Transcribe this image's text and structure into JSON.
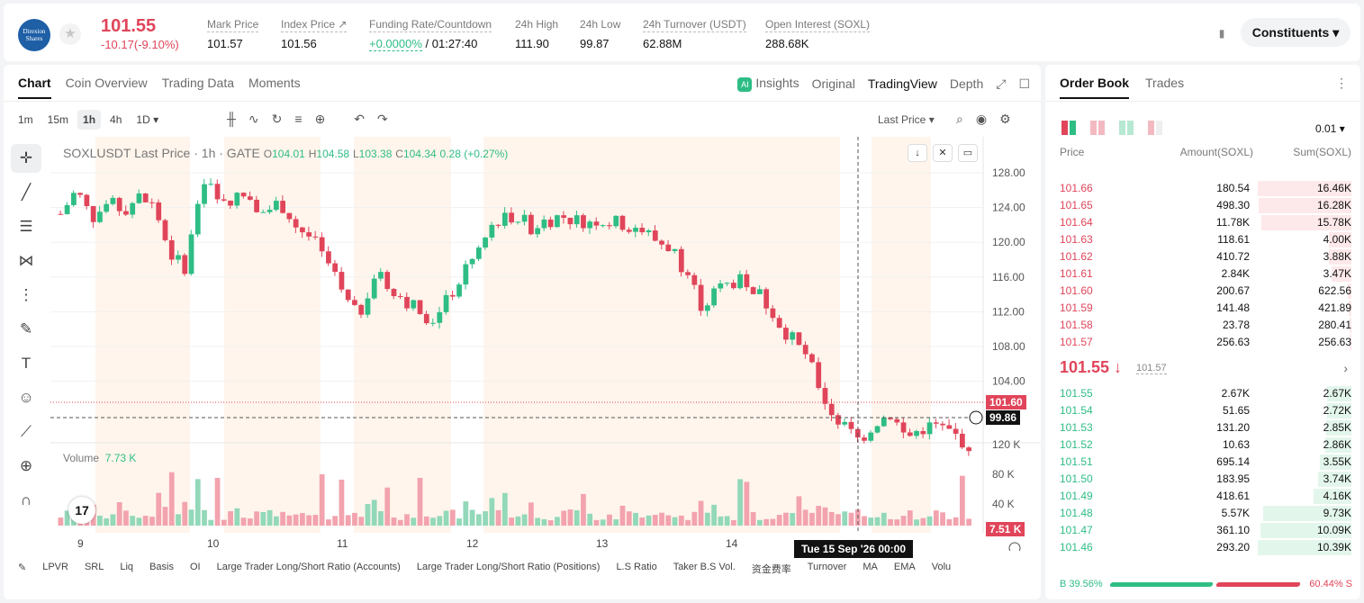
{
  "header": {
    "logo_line1": "Direxion",
    "logo_line2": "Shares",
    "last_price": "101.55",
    "change": "-10.17(-9.10%)",
    "stats": [
      {
        "label": "Mark Price",
        "value": "101.57"
      },
      {
        "label": "Index Price ↗",
        "value": "101.56"
      },
      {
        "label": "Funding Rate/Countdown",
        "value_green": "+0.0000%",
        "value": " / 01:27:40"
      },
      {
        "label": "24h High",
        "value": "111.90"
      },
      {
        "label": "24h Low",
        "value": "99.87"
      },
      {
        "label": "24h Turnover (USDT)",
        "value": "62.88M"
      },
      {
        "label": "Open Interest (SOXL)",
        "value": "288.68K"
      }
    ],
    "constituents_label": "Constituents ▾"
  },
  "chart_panel": {
    "tabs": [
      "Chart",
      "Coin Overview",
      "Trading Data",
      "Moments"
    ],
    "views": {
      "insights": "Insights",
      "original": "Original",
      "tradingview": "TradingView",
      "depth": "Depth"
    },
    "timeframes": [
      "1m",
      "15m",
      "1h",
      "4h",
      "1D ▾"
    ],
    "price_type": "Last Price ▾",
    "legend": {
      "symbol": "SOXLUSDT Last Price · 1h · GATE",
      "o_label": "O",
      "o": "104.01",
      "h_label": "H",
      "h": "104.58",
      "l_label": "L",
      "l": "103.38",
      "c_label": "C",
      "c": "104.34",
      "chg": "0.28 (+0.27%)"
    },
    "volume_label": "Volume",
    "volume_value": "7.73 K",
    "last_price_tag": "101.60",
    "cursor_price_tag": "99.86",
    "volume_tag": "7.51 K",
    "crosshair_time": "Tue 15 Sep '26   00:00",
    "indicators": [
      "LPVR",
      "SRL",
      "Liq",
      "Basis",
      "OI",
      "Large Trader Long/Short Ratio (Accounts)",
      "Large Trader Long/Short Ratio (Positions)",
      "L.S Ratio",
      "Taker B.S Vol.",
      "资金费率",
      "Turnover",
      "MA",
      "EMA",
      "Volu"
    ]
  },
  "chart_data": {
    "type": "candlestick",
    "title": "SOXLUSDT Last Price · 1h · GATE",
    "y_ticks": [
      "128.00",
      "124.00",
      "120.00",
      "116.00",
      "112.00",
      "108.00",
      "104.00"
    ],
    "volume_ticks": [
      "120 K",
      "80 K",
      "40 K"
    ],
    "x_ticks": [
      "9",
      "10",
      "11",
      "12",
      "13",
      "14"
    ],
    "ylim": [
      100,
      130
    ],
    "close_path": [
      124.2,
      126.5,
      123.8,
      125.2,
      124.6,
      125.8,
      124.9,
      120.2,
      119.0,
      127.4,
      126.2,
      125.6,
      126.1,
      124.3,
      125.4,
      123.1,
      121.8,
      119.5,
      116.2,
      114.0,
      118.4,
      117.2,
      115.8,
      114.5,
      113.8,
      116.6,
      118.9,
      121.5,
      123.8,
      124.1,
      122.9,
      123.6,
      124.0,
      123.5,
      123.7,
      123.4,
      123.2,
      122.8,
      121.6,
      120.9,
      118.4,
      115.0,
      116.8,
      117.6,
      117.4,
      115.6,
      113.2,
      111.4,
      109.0,
      105.2,
      103.4,
      102.0,
      103.8,
      104.6,
      102.2,
      103.2,
      103.4,
      102.6,
      101.6
    ]
  },
  "orderbook": {
    "tabs": [
      "Order Book",
      "Trades"
    ],
    "tick": "0.01 ▾",
    "headers": {
      "price": "Price",
      "amount": "Amount(SOXL)",
      "sum": "Sum(SOXL)"
    },
    "asks": [
      {
        "price": "101.66",
        "amount": "180.54",
        "sum": "16.46K",
        "depth": 1.0
      },
      {
        "price": "101.65",
        "amount": "498.30",
        "sum": "16.28K",
        "depth": 0.99
      },
      {
        "price": "101.64",
        "amount": "11.78K",
        "sum": "15.78K",
        "depth": 0.96
      },
      {
        "price": "101.63",
        "amount": "118.61",
        "sum": "4.00K",
        "depth": 0.24
      },
      {
        "price": "101.62",
        "amount": "410.72",
        "sum": "3.88K",
        "depth": 0.24
      },
      {
        "price": "101.61",
        "amount": "2.84K",
        "sum": "3.47K",
        "depth": 0.21
      },
      {
        "price": "101.60",
        "amount": "200.67",
        "sum": "622.56",
        "depth": 0.04
      },
      {
        "price": "101.59",
        "amount": "141.48",
        "sum": "421.89",
        "depth": 0.03
      },
      {
        "price": "101.58",
        "amount": "23.78",
        "sum": "280.41",
        "depth": 0.02
      },
      {
        "price": "101.57",
        "amount": "256.63",
        "sum": "256.63",
        "depth": 0.02
      }
    ],
    "mid_price": "101.55 ↓",
    "mid_mark": "101.57",
    "bids": [
      {
        "price": "101.55",
        "amount": "2.67K",
        "sum": "2.67K",
        "depth": 0.26
      },
      {
        "price": "101.54",
        "amount": "51.65",
        "sum": "2.72K",
        "depth": 0.26
      },
      {
        "price": "101.53",
        "amount": "131.20",
        "sum": "2.85K",
        "depth": 0.27
      },
      {
        "price": "101.52",
        "amount": "10.63",
        "sum": "2.86K",
        "depth": 0.28
      },
      {
        "price": "101.51",
        "amount": "695.14",
        "sum": "3.55K",
        "depth": 0.34
      },
      {
        "price": "101.50",
        "amount": "183.95",
        "sum": "3.74K",
        "depth": 0.36
      },
      {
        "price": "101.49",
        "amount": "418.61",
        "sum": "4.16K",
        "depth": 0.4
      },
      {
        "price": "101.48",
        "amount": "5.57K",
        "sum": "9.73K",
        "depth": 0.94
      },
      {
        "price": "101.47",
        "amount": "361.10",
        "sum": "10.09K",
        "depth": 0.97
      },
      {
        "price": "101.46",
        "amount": "293.20",
        "sum": "10.39K",
        "depth": 1.0
      }
    ],
    "buy_ratio": "B 39.56%",
    "sell_ratio": "60.44% S"
  }
}
